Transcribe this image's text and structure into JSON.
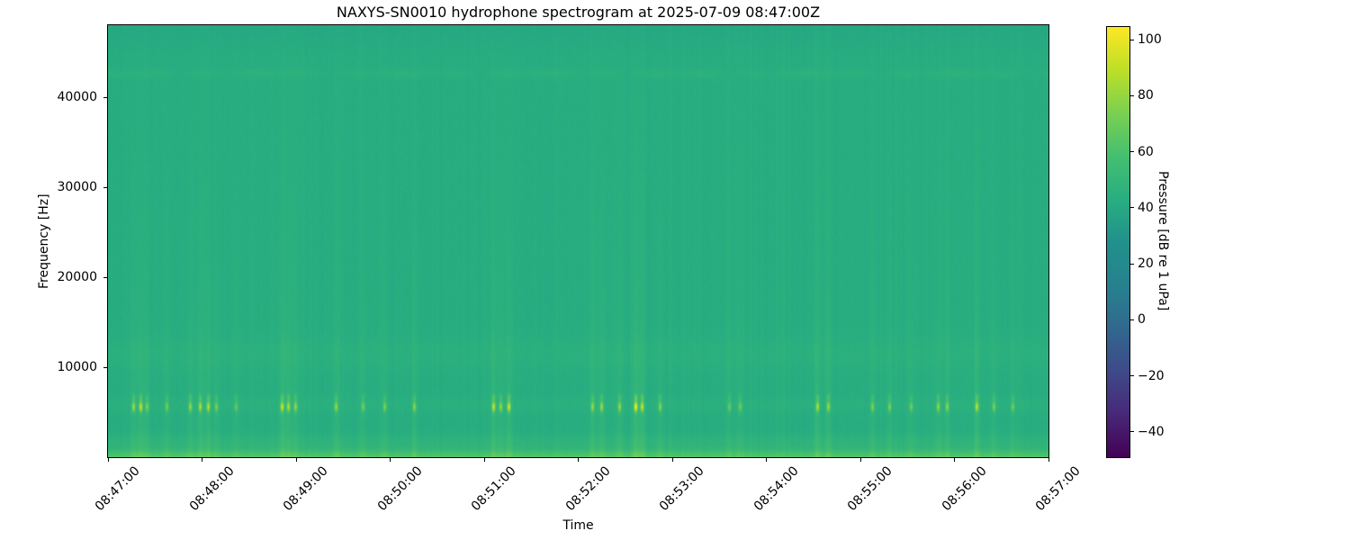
{
  "title": "NAXYS-SN0010 hydrophone spectrogram at 2025-07-09 08:47:00Z",
  "chart_data": {
    "type": "heatmap",
    "subtype": "spectrogram",
    "title": "NAXYS-SN0010 hydrophone spectrogram at 2025-07-09 08:47:00Z",
    "xlabel": "Time",
    "ylabel": "Frequency [Hz]",
    "x_ticks": [
      "08:47:00",
      "08:48:00",
      "08:49:00",
      "08:50:00",
      "08:51:00",
      "08:52:00",
      "08:53:00",
      "08:54:00",
      "08:55:00",
      "08:56:00",
      "08:57:00"
    ],
    "y_ticks": [
      10000,
      20000,
      30000,
      40000
    ],
    "freq_range_hz": [
      0,
      48000
    ],
    "time_range": [
      "08:47:00",
      "08:57:00"
    ],
    "grid": false,
    "colorbar": {
      "label": "Pressure [dB re 1 uPa]",
      "ticks": [
        100,
        80,
        60,
        40,
        20,
        0,
        -20,
        -40
      ],
      "vmin": -49,
      "vmax": 104.5,
      "colormap": "viridis"
    },
    "background_level_db": 42.5,
    "features": {
      "low_strip_db": 19,
      "low_band_db": 4.5,
      "click_band_center_hz": 5600,
      "click_band_ambient_db": 2.2,
      "click_peak_db": 54,
      "mid_band_center_hz": 11500,
      "mid_band_db": 2.4,
      "high_band_center_hz": 42600,
      "high_band_db": 2.2,
      "top_rolloff_above_hz": 44500
    },
    "events": [
      {
        "t": 0.027,
        "amp": 0.65
      },
      {
        "t": 0.034,
        "amp": 0.8
      },
      {
        "t": 0.041,
        "amp": 0.5
      },
      {
        "t": 0.062,
        "amp": 0.45
      },
      {
        "t": 0.087,
        "amp": 0.6
      },
      {
        "t": 0.098,
        "amp": 0.7
      },
      {
        "t": 0.106,
        "amp": 0.75
      },
      {
        "t": 0.115,
        "amp": 0.5
      },
      {
        "t": 0.136,
        "amp": 0.4
      },
      {
        "t": 0.185,
        "amp": 0.8
      },
      {
        "t": 0.191,
        "amp": 0.7
      },
      {
        "t": 0.199,
        "amp": 0.6
      },
      {
        "t": 0.242,
        "amp": 0.6
      },
      {
        "t": 0.271,
        "amp": 0.45
      },
      {
        "t": 0.294,
        "amp": 0.5
      },
      {
        "t": 0.325,
        "amp": 0.55
      },
      {
        "t": 0.41,
        "amp": 0.8
      },
      {
        "t": 0.417,
        "amp": 0.6
      },
      {
        "t": 0.426,
        "amp": 0.85
      },
      {
        "t": 0.515,
        "amp": 0.6
      },
      {
        "t": 0.524,
        "amp": 0.65
      },
      {
        "t": 0.544,
        "amp": 0.6
      },
      {
        "t": 0.561,
        "amp": 1.0
      },
      {
        "t": 0.567,
        "amp": 0.8
      },
      {
        "t": 0.587,
        "amp": 0.55
      },
      {
        "t": 0.66,
        "amp": 0.4
      },
      {
        "t": 0.672,
        "amp": 0.45
      },
      {
        "t": 0.754,
        "amp": 0.7
      },
      {
        "t": 0.766,
        "amp": 0.6
      },
      {
        "t": 0.812,
        "amp": 0.5
      },
      {
        "t": 0.831,
        "amp": 0.5
      },
      {
        "t": 0.854,
        "amp": 0.45
      },
      {
        "t": 0.882,
        "amp": 0.6
      },
      {
        "t": 0.892,
        "amp": 0.55
      },
      {
        "t": 0.923,
        "amp": 0.75
      },
      {
        "t": 0.942,
        "amp": 0.5
      },
      {
        "t": 0.962,
        "amp": 0.45
      }
    ],
    "render": {
      "seed": 1337,
      "viridis_stops": [
        [
          0.0,
          "#440154"
        ],
        [
          0.1,
          "#482878"
        ],
        [
          0.2,
          "#3e4a89"
        ],
        [
          0.3,
          "#31688e"
        ],
        [
          0.4,
          "#26828e"
        ],
        [
          0.5,
          "#21918c"
        ],
        [
          0.6,
          "#28ae80"
        ],
        [
          0.7,
          "#44bf70"
        ],
        [
          0.8,
          "#7ad151"
        ],
        [
          0.9,
          "#bddf26"
        ],
        [
          1.0,
          "#fde725"
        ]
      ]
    }
  }
}
